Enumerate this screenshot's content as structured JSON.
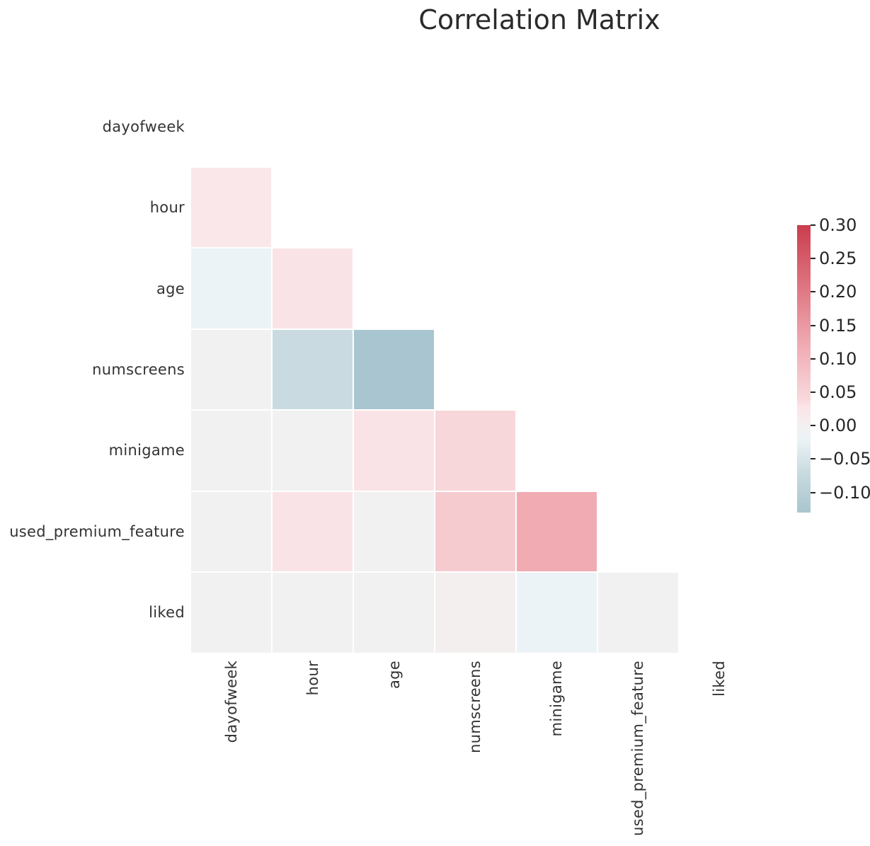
{
  "chart_data": {
    "type": "heatmap",
    "title": "Correlation Matrix",
    "subtitle": "",
    "variables": [
      "dayofweek",
      "hour",
      "age",
      "numscreens",
      "minigame",
      "used_premium_feature",
      "liked"
    ],
    "mask": "upper-triangle-including-diagonal",
    "matrix": [
      [
        null,
        null,
        null,
        null,
        null,
        null,
        null
      ],
      [
        0.02,
        null,
        null,
        null,
        null,
        null,
        null
      ],
      [
        -0.02,
        0.03,
        null,
        null,
        null,
        null,
        null
      ],
      [
        0.0,
        -0.07,
        -0.13,
        null,
        null,
        null,
        null
      ],
      [
        0.0,
        0.0,
        0.03,
        0.04,
        null,
        null,
        null
      ],
      [
        0.0,
        0.03,
        0.0,
        0.065,
        0.12,
        null,
        null
      ],
      [
        0.0,
        0.0,
        0.0,
        0.005,
        -0.02,
        0.0,
        null
      ]
    ],
    "grid": false,
    "legend_position": "right-colorbar",
    "colorbar": {
      "vmin": -0.13,
      "vmax": 0.3,
      "ticks": [
        {
          "v": 0.3,
          "label": "0.30"
        },
        {
          "v": 0.25,
          "label": "0.25"
        },
        {
          "v": 0.2,
          "label": "0.20"
        },
        {
          "v": 0.15,
          "label": "0.15"
        },
        {
          "v": 0.1,
          "label": "0.10"
        },
        {
          "v": 0.05,
          "label": "0.05"
        },
        {
          "v": 0.0,
          "label": "0.00"
        },
        {
          "v": -0.05,
          "label": "−0.05"
        },
        {
          "v": -0.1,
          "label": "−0.10"
        }
      ]
    },
    "colormap": {
      "name": "diverging-red-blue-light-center",
      "anchors": [
        {
          "v": -0.13,
          "c": "#a9c5cf"
        },
        {
          "v": -0.07,
          "c": "#c9dbe0"
        },
        {
          "v": -0.02,
          "c": "#ecf3f6"
        },
        {
          "v": 0.0,
          "c": "#f2f1f1"
        },
        {
          "v": 0.02,
          "c": "#fae7e9"
        },
        {
          "v": 0.03,
          "c": "#fae3e6"
        },
        {
          "v": 0.04,
          "c": "#f8d7db"
        },
        {
          "v": 0.065,
          "c": "#f5cbd0"
        },
        {
          "v": 0.12,
          "c": "#f0abb3"
        },
        {
          "v": 0.3,
          "c": "#cb3d4d"
        }
      ]
    },
    "colors": {
      "background": "#ffffff",
      "label_text": "#333333",
      "title_text": "#2b2b2b",
      "tick_mark": "#262626",
      "cell_gap": "#ffffff"
    }
  }
}
